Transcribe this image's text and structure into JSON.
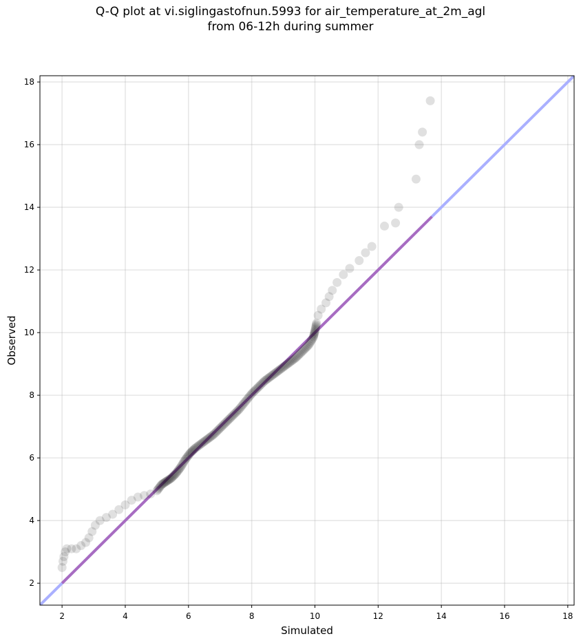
{
  "chart_data": {
    "type": "scatter",
    "title_lines": [
      "Q-Q plot at vi.siglingastofnun.5993 for air_temperature_at_2m_agl",
      "from 06-12h during summer"
    ],
    "xlabel": "Simulated",
    "ylabel": "Observed",
    "xlim": [
      1.3,
      18.2
    ],
    "ylim": [
      1.3,
      18.2
    ],
    "xticks": [
      "2",
      "4",
      "6",
      "8",
      "10",
      "12",
      "14",
      "16",
      "18"
    ],
    "yticks": [
      "2",
      "4",
      "6",
      "8",
      "10",
      "12",
      "14",
      "16",
      "18"
    ],
    "grid": true,
    "reference_line": {
      "from": [
        1.3,
        1.3
      ],
      "to": [
        18.2,
        18.2
      ],
      "color": "#aab0ff"
    },
    "data_range_line": {
      "from": [
        2.0,
        2.0
      ],
      "to": [
        13.7,
        13.7
      ],
      "color": "#a86cc1"
    },
    "points": [
      [
        2.0,
        2.5
      ],
      [
        2.03,
        2.7
      ],
      [
        2.06,
        2.85
      ],
      [
        2.1,
        3.0
      ],
      [
        2.15,
        3.1
      ],
      [
        2.3,
        3.1
      ],
      [
        2.45,
        3.1
      ],
      [
        2.6,
        3.2
      ],
      [
        2.75,
        3.3
      ],
      [
        2.85,
        3.45
      ],
      [
        2.95,
        3.65
      ],
      [
        3.05,
        3.85
      ],
      [
        3.2,
        4.0
      ],
      [
        3.4,
        4.1
      ],
      [
        3.6,
        4.2
      ],
      [
        3.8,
        4.35
      ],
      [
        4.0,
        4.5
      ],
      [
        4.2,
        4.65
      ],
      [
        4.4,
        4.75
      ],
      [
        4.6,
        4.8
      ],
      [
        4.8,
        4.85
      ],
      [
        5.0,
        4.95
      ],
      [
        5.15,
        5.15
      ],
      [
        5.3,
        5.25
      ],
      [
        5.45,
        5.35
      ],
      [
        5.6,
        5.5
      ],
      [
        5.75,
        5.7
      ],
      [
        5.9,
        5.95
      ],
      [
        6.05,
        6.15
      ],
      [
        6.2,
        6.3
      ],
      [
        6.4,
        6.45
      ],
      [
        6.6,
        6.6
      ],
      [
        6.8,
        6.75
      ],
      [
        7.0,
        6.95
      ],
      [
        7.2,
        7.15
      ],
      [
        7.4,
        7.35
      ],
      [
        7.6,
        7.55
      ],
      [
        7.8,
        7.8
      ],
      [
        8.0,
        8.05
      ],
      [
        8.2,
        8.25
      ],
      [
        8.4,
        8.45
      ],
      [
        8.6,
        8.6
      ],
      [
        8.8,
        8.75
      ],
      [
        9.0,
        8.9
      ],
      [
        9.2,
        9.05
      ],
      [
        9.4,
        9.2
      ],
      [
        9.6,
        9.4
      ],
      [
        9.8,
        9.6
      ],
      [
        9.95,
        9.85
      ],
      [
        10.0,
        10.05
      ],
      [
        10.05,
        10.3
      ],
      [
        10.1,
        10.55
      ],
      [
        10.2,
        10.75
      ],
      [
        10.35,
        10.95
      ],
      [
        10.45,
        11.15
      ],
      [
        10.55,
        11.35
      ],
      [
        10.7,
        11.6
      ],
      [
        10.9,
        11.85
      ],
      [
        11.1,
        12.05
      ],
      [
        11.4,
        12.3
      ],
      [
        11.6,
        12.55
      ],
      [
        11.8,
        12.75
      ],
      [
        12.2,
        13.4
      ],
      [
        12.55,
        13.5
      ],
      [
        12.65,
        14.0
      ],
      [
        13.2,
        14.9
      ],
      [
        13.3,
        16.0
      ],
      [
        13.4,
        16.4
      ],
      [
        13.65,
        17.4
      ]
    ]
  }
}
